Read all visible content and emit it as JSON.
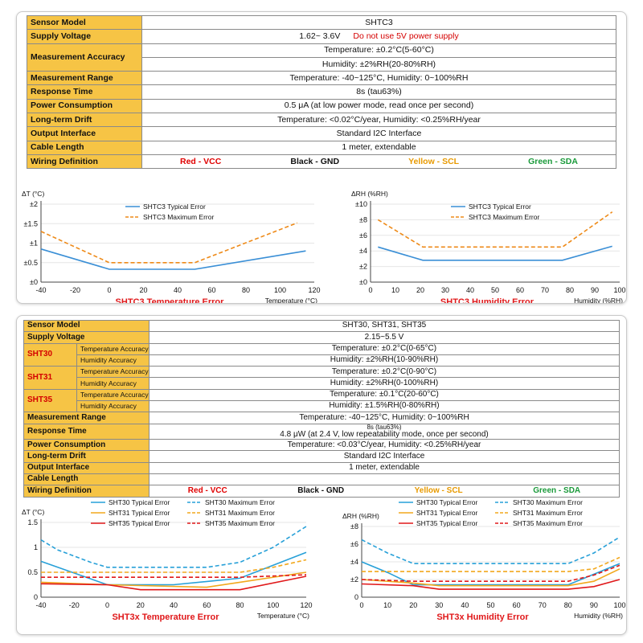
{
  "colors": {
    "label_bg": "#f6c445",
    "red": "#e00000",
    "black": "#111111",
    "yellow": "#e89a00",
    "green": "#1a9a3a",
    "blue": "#3a8fd6",
    "orange": "#ee8a18",
    "sht30_blue": "#27a0d8",
    "sht31_orange": "#f2a81d",
    "sht35_red": "#e0181a"
  },
  "shtc3_table": {
    "rows": [
      {
        "label": "Sensor Model",
        "value": "SHTC3"
      },
      {
        "label": "Supply Voltage",
        "value": "1.62~  3.6V",
        "warning": "Do not use 5V power supply"
      },
      {
        "label": "Measurement Accuracy",
        "value_lines": [
          "Temperature:  ±0.2°C(5-60°C)",
          "Humidity:  ±2%RH(20-80%RH)"
        ]
      },
      {
        "label": "Measurement Range",
        "value": "Temperature:  -40~125°C,    Humidity: 0~100%RH"
      },
      {
        "label": "Response Time",
        "value": "8s  (tau63%)"
      },
      {
        "label": "Power Consumption",
        "value": "0.5 μA   (at low power mode, read once per second)"
      },
      {
        "label": "Long-term Drift",
        "value": "Temperature: <0.02°C/year,    Humidity: <0.25%RH/year"
      },
      {
        "label": "Output Interface",
        "value": "Standard I2C Interface"
      },
      {
        "label": "Cable Length",
        "value": "1 meter,  extendable"
      },
      {
        "label": "Wiring Definition",
        "wires": [
          "Red - VCC",
          "Black - GND",
          "Yellow - SCL",
          "Green - SDA"
        ]
      }
    ]
  },
  "sht3x_table": {
    "top": [
      {
        "label": "Sensor Model",
        "value": "SHT30, SHT31, SHT35"
      },
      {
        "label": "Supply Voltage",
        "value": "2.15~5.5 V"
      }
    ],
    "models": [
      {
        "name": "SHT30",
        "temp_label": "Temperature Accuracy",
        "temp": "Temperature:   ±0.2°C(0-65°C)",
        "hum_label": "Humidity Accuracy",
        "hum": "Humidity:   ±2%RH(10-90%RH)"
      },
      {
        "name": "SHT31",
        "temp_label": "Temperature Accuracy",
        "temp": "Temperature:   ±0.2°C(0-90°C)",
        "hum_label": "Humidity Accuracy",
        "hum": "Humidity:   ±2%RH(0-100%RH)"
      },
      {
        "name": "SHT35",
        "temp_label": "Temperature Accuracy",
        "temp": "Temperature:   ±0.1°C(20-60°C)",
        "hum_label": "Humidity Accuracy",
        "hum": "Humidity:   ±1.5%RH(0-80%RH)"
      }
    ],
    "bottom": [
      {
        "label": "Measurement Range",
        "value": "Temperature: -40~125°C,    Humidity: 0~100%RH"
      },
      {
        "label": "Response Time",
        "value_small": "8s (tau63%)",
        "value": "4.8 μW  (at 2.4 V, low repeatability mode, once per second)"
      },
      {
        "label": "Power Consumption",
        "value": "Temperature: <0.03°C/year,    Humidity: <0.25%RH/year"
      },
      {
        "label": "Long-term Drift",
        "value": "Standard I2C Interface"
      },
      {
        "label": "Output Interface",
        "value": "1 meter,  extendable"
      },
      {
        "label": "Cable Length",
        "value": ""
      },
      {
        "label": "Wiring Definition",
        "wires": [
          "Red - VCC",
          "Black - GND",
          "Yellow - SCL",
          "Green - SDA"
        ]
      }
    ]
  },
  "chart_data": [
    {
      "type": "line",
      "caption": "SHTC3 Temperature Error",
      "ylabel": "ΔT (°C)",
      "xlabel": "Temperature (°C)",
      "xlim": [
        -40,
        120
      ],
      "ylim": [
        0,
        2
      ],
      "xticks": [
        -40,
        -20,
        0,
        20,
        40,
        60,
        80,
        100,
        120
      ],
      "xtick_labels": [
        "-40",
        "-20",
        "0",
        "20",
        "40",
        "60",
        "80",
        "100",
        "120"
      ],
      "yticks": [
        0,
        0.5,
        1,
        1.5,
        2
      ],
      "ytick_labels": [
        "±0",
        "±0.5",
        "±1",
        "±1.5",
        "±2"
      ],
      "legend": "top-left",
      "grid": true,
      "series": [
        {
          "name": "SHTC3 Typical Error",
          "color": "#3a8fd6",
          "dash": false,
          "x": [
            -40,
            0,
            50,
            115
          ],
          "y": [
            0.85,
            0.33,
            0.33,
            0.8
          ]
        },
        {
          "name": "SHTC3 Maximum Error",
          "color": "#ee8a18",
          "dash": true,
          "x": [
            -40,
            0,
            50,
            110
          ],
          "y": [
            1.3,
            0.5,
            0.5,
            1.52
          ]
        }
      ]
    },
    {
      "type": "line",
      "caption": "SHTC3 Humidity Error",
      "ylabel": "ΔRH (%RH)",
      "xlabel": "Humidity (%RH)",
      "xlim": [
        0,
        100
      ],
      "ylim": [
        0,
        10
      ],
      "xticks": [
        0,
        10,
        20,
        30,
        40,
        50,
        60,
        70,
        80,
        90,
        100
      ],
      "xtick_labels": [
        "0",
        "10",
        "20",
        "30",
        "40",
        "50",
        "60",
        "70",
        "80",
        "90",
        "100"
      ],
      "yticks": [
        0,
        2,
        4,
        6,
        8,
        10
      ],
      "ytick_labels": [
        "±0",
        "±2",
        "±4",
        "±6",
        "±8",
        "±10"
      ],
      "legend": "top-left",
      "grid": true,
      "series": [
        {
          "name": "SHTC3 Typical Error",
          "color": "#3a8fd6",
          "dash": false,
          "x": [
            3,
            21,
            77,
            97
          ],
          "y": [
            4.5,
            2.8,
            2.8,
            4.6
          ]
        },
        {
          "name": "SHTC3 Maximum Error",
          "color": "#ee8a18",
          "dash": true,
          "x": [
            3,
            21,
            77,
            97
          ],
          "y": [
            8,
            4.5,
            4.5,
            9
          ]
        }
      ]
    },
    {
      "type": "line",
      "caption": "SHT3x Temperature Error",
      "ylabel": "ΔT (°C)",
      "xlabel": "Temperature (°C)",
      "xlim": [
        -40,
        120
      ],
      "ylim": [
        0,
        1.5
      ],
      "xticks": [
        -40,
        -20,
        0,
        20,
        40,
        60,
        80,
        100,
        120
      ],
      "xtick_labels": [
        "-40",
        "-20",
        "0",
        "20",
        "40",
        "60",
        "80",
        "100",
        "120"
      ],
      "yticks": [
        0,
        0.5,
        1,
        1.5
      ],
      "ytick_labels": [
        "0",
        "0.5",
        "1",
        "1.5"
      ],
      "legend": "top",
      "grid": true,
      "series": [
        {
          "name": "SHT30 Typical Error",
          "color": "#27a0d8",
          "dash": false,
          "x": [
            -40,
            0,
            40,
            80,
            120
          ],
          "y": [
            0.72,
            0.25,
            0.25,
            0.38,
            0.9
          ]
        },
        {
          "name": "SHT30 Maximum Error",
          "color": "#27a0d8",
          "dash": true,
          "x": [
            -40,
            -30,
            -10,
            0,
            60,
            80,
            100,
            120
          ],
          "y": [
            1.15,
            0.95,
            0.7,
            0.6,
            0.6,
            0.7,
            1.0,
            1.42
          ]
        },
        {
          "name": "SHT31 Typical Error",
          "color": "#f2a81d",
          "dash": false,
          "x": [
            -40,
            0,
            60,
            80,
            120
          ],
          "y": [
            0.3,
            0.25,
            0.2,
            0.3,
            0.5
          ]
        },
        {
          "name": "SHT31 Maximum Error",
          "color": "#f2a81d",
          "dash": true,
          "x": [
            -40,
            0,
            80,
            100,
            120
          ],
          "y": [
            0.5,
            0.5,
            0.5,
            0.6,
            0.75
          ]
        },
        {
          "name": "SHT35 Typical Error",
          "color": "#e0181a",
          "dash": false,
          "x": [
            -40,
            0,
            20,
            80,
            120
          ],
          "y": [
            0.27,
            0.25,
            0.15,
            0.15,
            0.42
          ]
        },
        {
          "name": "SHT35 Maximum Error",
          "color": "#e0181a",
          "dash": true,
          "x": [
            -40,
            0,
            80,
            120
          ],
          "y": [
            0.4,
            0.4,
            0.4,
            0.45
          ]
        }
      ]
    },
    {
      "type": "line",
      "caption": "SHT3x Humidity Error",
      "ylabel": "ΔRH (%RH)",
      "xlabel": "Humidity (%RH)",
      "xlim": [
        0,
        100
      ],
      "ylim": [
        0,
        8
      ],
      "xticks": [
        0,
        10,
        20,
        30,
        40,
        50,
        60,
        70,
        80,
        90,
        100
      ],
      "xtick_labels": [
        "0",
        "10",
        "20",
        "30",
        "40",
        "50",
        "60",
        "70",
        "80",
        "90",
        "100"
      ],
      "yticks": [
        0,
        2,
        4,
        6,
        8
      ],
      "ytick_labels": [
        "0",
        "±2",
        "±4",
        "±6",
        "±8"
      ],
      "legend": "top",
      "grid": true,
      "series": [
        {
          "name": "SHT30 Typical Error",
          "color": "#27a0d8",
          "dash": false,
          "x": [
            0,
            10,
            20,
            80,
            90,
            100
          ],
          "y": [
            4,
            2.8,
            1.4,
            1.4,
            2.6,
            3.8
          ]
        },
        {
          "name": "SHT30 Maximum Error",
          "color": "#27a0d8",
          "dash": true,
          "x": [
            0,
            10,
            20,
            80,
            90,
            100
          ],
          "y": [
            6.5,
            5,
            3.8,
            3.8,
            5,
            6.8
          ]
        },
        {
          "name": "SHT31 Typical Error",
          "color": "#f2a81d",
          "dash": false,
          "x": [
            0,
            20,
            30,
            80,
            90,
            100
          ],
          "y": [
            2,
            1.6,
            1.3,
            1.3,
            1.8,
            3.2
          ]
        },
        {
          "name": "SHT31 Maximum Error",
          "color": "#f2a81d",
          "dash": true,
          "x": [
            0,
            80,
            90,
            100
          ],
          "y": [
            2.9,
            2.9,
            3.2,
            4.5
          ]
        },
        {
          "name": "SHT35 Typical Error",
          "color": "#e0181a",
          "dash": false,
          "x": [
            0,
            20,
            30,
            80,
            90,
            100
          ],
          "y": [
            1.5,
            1.3,
            0.9,
            0.9,
            1.2,
            2
          ]
        },
        {
          "name": "SHT35 Maximum Error",
          "color": "#e0181a",
          "dash": true,
          "x": [
            0,
            20,
            80,
            90,
            100
          ],
          "y": [
            2,
            1.8,
            1.8,
            2.5,
            3.6
          ]
        }
      ]
    }
  ]
}
